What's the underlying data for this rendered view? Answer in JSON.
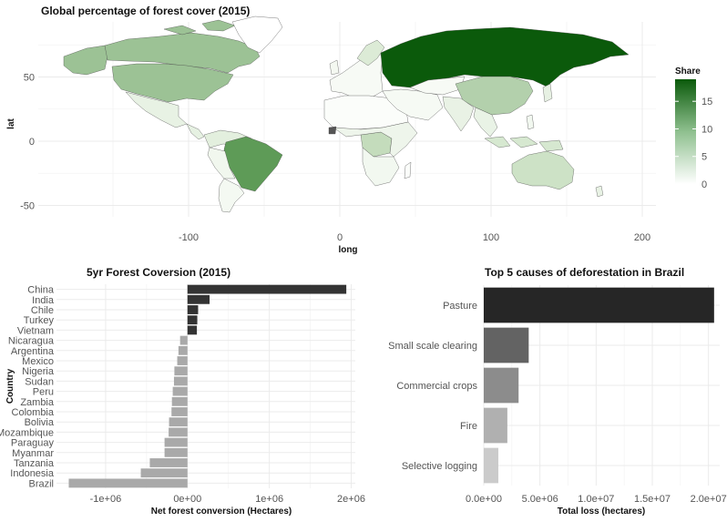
{
  "chart_data": [
    {
      "type": "map",
      "title": "Global percentage of forest cover (2015)",
      "xlabel": "long",
      "ylabel": "lat",
      "xticks": [
        "-100",
        "0",
        "100",
        "200"
      ],
      "yticks": [
        "50",
        "0",
        "-50"
      ],
      "legend": {
        "title": "Share",
        "ticks": [
          "15",
          "10",
          "5",
          "0"
        ],
        "range": [
          0,
          19
        ],
        "placement": "right",
        "colors": [
          "#ffffff",
          "#0b5a0b"
        ]
      },
      "regions": [
        {
          "name": "Russia",
          "value": 19
        },
        {
          "name": "Brazil",
          "value": 12
        },
        {
          "name": "Canada",
          "value": 8
        },
        {
          "name": "United States",
          "value": 8
        },
        {
          "name": "China",
          "value": 5
        },
        {
          "name": "Australia",
          "value": 3
        },
        {
          "name": "DR Congo",
          "value": 3
        }
      ],
      "grid": true
    },
    {
      "type": "bar",
      "orientation": "horizontal",
      "title": "5yr Forest Coversion (2015)",
      "xlabel": "Net forest conversion (Hectares)",
      "ylabel": "Country",
      "xlim": [
        -1600000,
        2050000
      ],
      "xticks": [
        {
          "value": -1000000,
          "label": "-1e+06"
        },
        {
          "value": 0,
          "label": "0e+00"
        },
        {
          "value": 1000000,
          "label": "1e+06"
        },
        {
          "value": 2000000,
          "label": "2e+06"
        }
      ],
      "categories": [
        "China",
        "India",
        "Chile",
        "Turkey",
        "Vietnam",
        "Nicaragua",
        "Argentina",
        "Mexico",
        "Nigeria",
        "Sudan",
        "Peru",
        "Zambia",
        "Colombia",
        "Bolivia",
        "Mozambique",
        "Paraguay",
        "Myanmar",
        "Tanzania",
        "Indonesia",
        "Brazil"
      ],
      "values": [
        1940000,
        270000,
        130000,
        120000,
        115000,
        -90000,
        -110000,
        -125000,
        -160000,
        -165000,
        -180000,
        -190000,
        -195000,
        -225000,
        -230000,
        -280000,
        -280000,
        -460000,
        -570000,
        -1450000
      ],
      "colors": {
        "positive": "#333333",
        "negative": "#a9a9a9"
      },
      "grid": true
    },
    {
      "type": "bar",
      "orientation": "horizontal",
      "title": "Top 5 causes of deforestation in Brazil",
      "xlabel": "Total loss (hectares)",
      "ylabel": "",
      "xlim": [
        0,
        21000000
      ],
      "xticks": [
        {
          "value": 0,
          "label": "0.0e+00"
        },
        {
          "value": 5000000,
          "label": "5.0e+06"
        },
        {
          "value": 10000000,
          "label": "1.0e+07"
        },
        {
          "value": 15000000,
          "label": "1.5e+07"
        },
        {
          "value": 20000000,
          "label": "2.0e+07"
        }
      ],
      "categories": [
        "Pasture",
        "Small scale clearing",
        "Commercial crops",
        "Fire",
        "Selective logging"
      ],
      "values": [
        20500000,
        4000000,
        3100000,
        2100000,
        1300000
      ],
      "colors": [
        "#262626",
        "#636363",
        "#8c8c8c",
        "#b0b0b0",
        "#cbcbcb"
      ],
      "grid": true
    }
  ]
}
